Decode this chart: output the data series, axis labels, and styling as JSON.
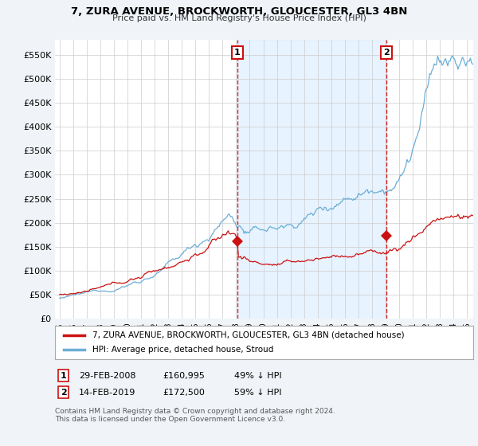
{
  "title": "7, ZURA AVENUE, BROCKWORTH, GLOUCESTER, GL3 4BN",
  "subtitle": "Price paid vs. HM Land Registry's House Price Index (HPI)",
  "ylim": [
    0,
    580000
  ],
  "yticks": [
    0,
    50000,
    100000,
    150000,
    200000,
    250000,
    300000,
    350000,
    400000,
    450000,
    500000,
    550000
  ],
  "ytick_labels": [
    "£0",
    "£50K",
    "£100K",
    "£150K",
    "£200K",
    "£250K",
    "£300K",
    "£350K",
    "£400K",
    "£450K",
    "£500K",
    "£550K"
  ],
  "hpi_color": "#6baed6",
  "price_color": "#cc1111",
  "shade_color": "#ddeeff",
  "marker1_price": 160995,
  "marker2_price": 172500,
  "legend_line1": "7, ZURA AVENUE, BROCKWORTH, GLOUCESTER, GL3 4BN (detached house)",
  "legend_line2": "HPI: Average price, detached house, Stroud",
  "footnote1": "Contains HM Land Registry data © Crown copyright and database right 2024.",
  "footnote2": "This data is licensed under the Open Government Licence v3.0.",
  "bg_color": "#f0f4f8"
}
